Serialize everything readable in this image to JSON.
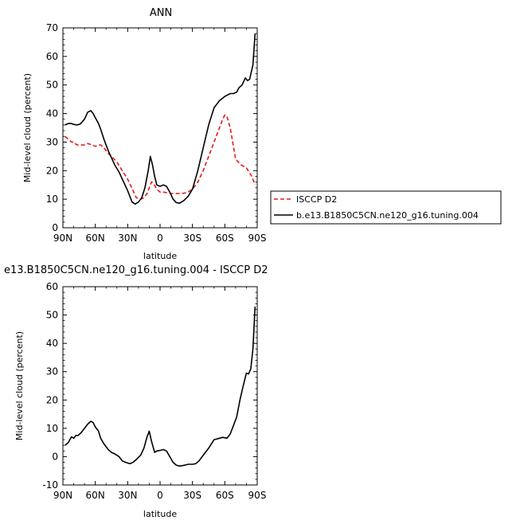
{
  "chart_data": [
    {
      "type": "line",
      "title": "ANN",
      "xlabel": "latitude",
      "ylabel": "Mid-level cloud (percent)",
      "xlim": [
        90,
        -90
      ],
      "ylim": [
        0,
        70
      ],
      "xticks": [
        90,
        60,
        30,
        0,
        -30,
        -60,
        -90
      ],
      "xtick_labels": [
        "90N",
        "60N",
        "30N",
        "0",
        "30S",
        "60S",
        "90S"
      ],
      "yticks": [
        0,
        10,
        20,
        30,
        40,
        50,
        60,
        70
      ],
      "legend": "right",
      "series": [
        {
          "name": "ISCCP D2",
          "color": "#e41a1c",
          "dash": "dashed",
          "x": [
            88,
            85,
            82,
            80,
            77,
            73,
            70,
            67,
            63,
            60,
            57,
            55,
            52,
            48,
            45,
            40,
            35,
            30,
            25,
            22,
            18,
            15,
            12,
            10,
            8,
            6,
            3,
            0,
            -3,
            -6,
            -10,
            -15,
            -20,
            -25,
            -30,
            -35,
            -40,
            -45,
            -50,
            -55,
            -58,
            -60,
            -62,
            -65,
            -70,
            -75,
            -80,
            -85,
            -88
          ],
          "y": [
            32,
            31,
            30,
            30,
            29,
            29,
            29,
            29.5,
            29,
            28.5,
            29,
            29,
            28,
            26,
            25,
            23,
            20,
            17,
            13,
            10.5,
            10,
            10.5,
            12,
            14,
            16,
            15.5,
            13.5,
            12.5,
            12.5,
            12.3,
            12,
            12,
            12,
            12.3,
            13.5,
            16,
            20,
            25,
            30,
            35,
            38,
            39.5,
            39,
            35,
            24,
            22,
            21,
            18,
            15
          ]
        },
        {
          "name": "b.e13.B1850C5CN.ne120_g16.tuning.004",
          "color": "#000000",
          "dash": "solid",
          "x": [
            88,
            85,
            82,
            80,
            77,
            74,
            70,
            67,
            64,
            62,
            60,
            57,
            55,
            52,
            48,
            45,
            42,
            38,
            35,
            30,
            26,
            23,
            20,
            17,
            14,
            11,
            9,
            7,
            5,
            3,
            0,
            -3,
            -6,
            -9,
            -12,
            -15,
            -18,
            -22,
            -26,
            -30,
            -35,
            -40,
            -45,
            -50,
            -55,
            -60,
            -63,
            -65,
            -68,
            -71,
            -73,
            -76,
            -79,
            -81,
            -83,
            -86,
            -88
          ],
          "y": [
            36,
            36.5,
            36.5,
            36.2,
            36,
            36.3,
            38,
            40.5,
            41,
            40,
            38.5,
            36.5,
            34.5,
            31,
            27,
            24.5,
            22,
            19.5,
            17,
            13,
            9,
            8.3,
            9,
            10.5,
            14,
            20,
            25,
            22,
            18,
            15,
            14.5,
            15,
            14.5,
            12.5,
            10,
            8.8,
            8.6,
            9.5,
            11,
            13.5,
            20,
            28,
            36,
            42,
            44.5,
            46,
            46.6,
            47,
            47,
            47.5,
            49,
            50,
            52.5,
            51.5,
            52,
            57,
            68
          ]
        }
      ]
    },
    {
      "type": "line",
      "title": "e13.B1850C5CN.ne120_g16.tuning.004 - ISCCP D2",
      "xlabel": "latitude",
      "ylabel": "Mid-level cloud (percent)",
      "xlim": [
        90,
        -90
      ],
      "ylim": [
        -10,
        60
      ],
      "xticks": [
        90,
        60,
        30,
        0,
        -30,
        -60,
        -90
      ],
      "xtick_labels": [
        "90N",
        "60N",
        "30N",
        "0",
        "30S",
        "60S",
        "90S"
      ],
      "yticks": [
        -10,
        0,
        10,
        20,
        30,
        40,
        50,
        60
      ],
      "series": [
        {
          "color": "#000000",
          "dash": "solid",
          "x": [
            88,
            85,
            82,
            80,
            78,
            76,
            73,
            70,
            67,
            64,
            62,
            60,
            57,
            55,
            52,
            48,
            45,
            42,
            38,
            35,
            32,
            28,
            25,
            22,
            18,
            15,
            12,
            10,
            8,
            5,
            3,
            0,
            -3,
            -6,
            -9,
            -12,
            -15,
            -18,
            -20,
            -23,
            -26,
            -30,
            -33,
            -36,
            -40,
            -45,
            -50,
            -55,
            -58,
            -62,
            -65,
            -68,
            -71,
            -74,
            -77,
            -80,
            -82,
            -84,
            -86,
            -88
          ],
          "y": [
            4,
            5,
            7,
            6.5,
            7.5,
            7.5,
            8.5,
            10,
            11.5,
            12.5,
            12,
            10.5,
            9,
            6.5,
            4.5,
            2.5,
            1.5,
            1,
            0,
            -1.5,
            -2,
            -2.5,
            -2,
            -1,
            0.5,
            3,
            7,
            9,
            5.5,
            1.5,
            2,
            2.2,
            2.5,
            2,
            0,
            -2,
            -3,
            -3.3,
            -3.2,
            -3,
            -2.7,
            -2.7,
            -2.5,
            -1.5,
            0.5,
            3,
            6,
            6.5,
            6.8,
            6.5,
            8,
            11,
            14,
            20,
            25,
            29.5,
            29.2,
            31,
            38,
            53
          ]
        }
      ]
    }
  ]
}
